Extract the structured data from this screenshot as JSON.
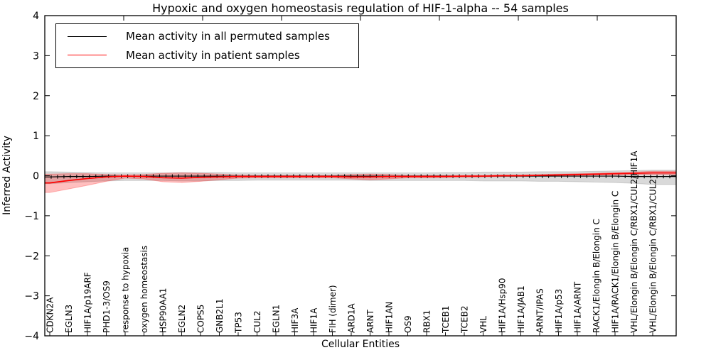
{
  "chart_data": {
    "type": "line",
    "title": "Hypoxic and oxygen homeostasis regulation of HIF-1-alpha -- 54 samples",
    "xlabel": "Cellular Entities",
    "ylabel": "Inferred Activity",
    "ylim": [
      -4,
      4
    ],
    "yticks": [
      4,
      3,
      2,
      1,
      0,
      -1,
      -2,
      -3,
      -4
    ],
    "grid": false,
    "legend_position": "upper left",
    "categories": [
      "CDKN2A",
      "EGLN3",
      "HIF1A/p19ARF",
      "PHD1-3/OS9",
      "response to hypoxia",
      "oxygen homeostasis",
      "HSP90AA1",
      "EGLN2",
      "COPS5",
      "GNB2L1",
      "TP53",
      "CUL2",
      "EGLN1",
      "HIF3A",
      "HIF1A",
      "FIH (dimer)",
      "ARD1A",
      "ARNT",
      "HIF1AN",
      "OS9",
      "RBX1",
      "TCEB1",
      "TCEB2",
      "VHL",
      "HIF1A/Hsp90",
      "HIF1A/JAB1",
      "ARNT/IPAS",
      "HIF1A/p53",
      "HIF1A/ARNT",
      "RACK1/Elongin B/Elongin C",
      "HIF1A/RACK1/Elongin B/Elongin C",
      "VHL/Elongin B/Elongin C/RBX1/CUL2/HIF1A",
      "VHL/Elongin B/Elongin C/RBX1/CUL2"
    ],
    "series": [
      {
        "name": "Mean activity in all permuted samples",
        "color": "#000000",
        "band_color": "rgba(130,130,130,0.30)",
        "values": [
          -0.03,
          -0.02,
          -0.02,
          -0.01,
          -0.01,
          -0.01,
          -0.01,
          -0.01,
          -0.01,
          -0.01,
          -0.01,
          -0.01,
          -0.01,
          -0.01,
          -0.01,
          -0.01,
          -0.01,
          -0.01,
          -0.01,
          -0.01,
          -0.01,
          -0.01,
          -0.01,
          -0.01,
          -0.01,
          -0.01,
          -0.01,
          -0.01,
          -0.01,
          -0.01,
          -0.01,
          -0.02,
          -0.02
        ],
        "band_upper": [
          0.1,
          0.09,
          0.08,
          0.07,
          0.07,
          0.07,
          0.07,
          0.08,
          0.08,
          0.08,
          0.07,
          0.07,
          0.07,
          0.07,
          0.07,
          0.07,
          0.07,
          0.07,
          0.07,
          0.07,
          0.07,
          0.08,
          0.08,
          0.09,
          0.09,
          0.09,
          0.1,
          0.1,
          0.1,
          0.11,
          0.12,
          0.13,
          0.14
        ],
        "band_lower": [
          -0.2,
          -0.17,
          -0.15,
          -0.13,
          -0.12,
          -0.12,
          -0.12,
          -0.13,
          -0.13,
          -0.12,
          -0.12,
          -0.11,
          -0.11,
          -0.11,
          -0.11,
          -0.11,
          -0.11,
          -0.12,
          -0.12,
          -0.12,
          -0.12,
          -0.12,
          -0.12,
          -0.13,
          -0.13,
          -0.13,
          -0.14,
          -0.14,
          -0.15,
          -0.16,
          -0.17,
          -0.19,
          -0.22
        ]
      },
      {
        "name": "Mean activity in patient samples",
        "color": "#ff0000",
        "band_color": "rgba(255,0,0,0.25)",
        "values": [
          -0.18,
          -0.12,
          -0.07,
          -0.03,
          -0.01,
          -0.02,
          -0.05,
          -0.06,
          -0.04,
          -0.03,
          -0.02,
          -0.02,
          -0.02,
          -0.02,
          -0.02,
          -0.02,
          -0.03,
          -0.03,
          -0.02,
          -0.02,
          -0.02,
          -0.02,
          -0.01,
          -0.01,
          0.0,
          0.0,
          0.01,
          0.02,
          0.03,
          0.04,
          0.05,
          0.06,
          0.07
        ],
        "band_upper": [
          0.04,
          0.05,
          0.05,
          0.03,
          0.02,
          0.03,
          0.06,
          0.07,
          0.06,
          0.04,
          0.02,
          0.01,
          0.01,
          0.01,
          0.01,
          0.01,
          0.03,
          0.04,
          0.03,
          0.01,
          0.01,
          0.01,
          0.01,
          0.01,
          0.02,
          0.02,
          0.03,
          0.04,
          0.05,
          0.06,
          0.08,
          0.09,
          0.11
        ],
        "band_lower": [
          -0.42,
          -0.33,
          -0.24,
          -0.14,
          -0.06,
          -0.08,
          -0.15,
          -0.17,
          -0.14,
          -0.1,
          -0.06,
          -0.05,
          -0.05,
          -0.05,
          -0.05,
          -0.05,
          -0.08,
          -0.1,
          -0.08,
          -0.05,
          -0.05,
          -0.04,
          -0.04,
          -0.03,
          -0.02,
          -0.02,
          -0.01,
          0.0,
          0.01,
          0.02,
          0.02,
          0.03,
          0.03
        ]
      }
    ]
  }
}
